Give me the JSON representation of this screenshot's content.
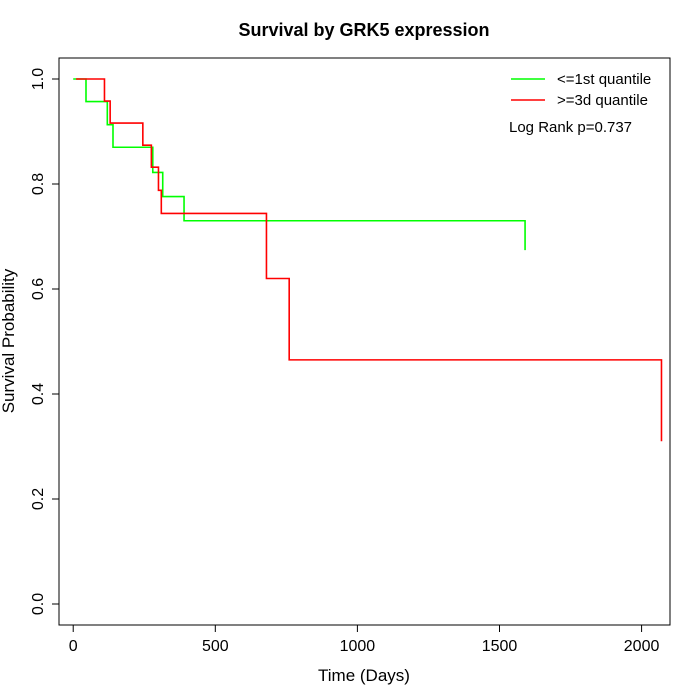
{
  "chart_data": {
    "type": "line",
    "title": "Survival by GRK5 expression",
    "xlabel": "Time (Days)",
    "ylabel": "Survival Probability",
    "xlim": [
      -50,
      2100
    ],
    "ylim": [
      -0.04,
      1.04
    ],
    "x_ticks": [
      0,
      500,
      1000,
      1500,
      2000
    ],
    "x_tick_labels": [
      "0",
      "500",
      "1000",
      "1500",
      "2000"
    ],
    "y_ticks": [
      0.0,
      0.2,
      0.4,
      0.6,
      0.8,
      1.0
    ],
    "y_tick_labels": [
      "0.0",
      "0.2",
      "0.4",
      "0.6",
      "0.8",
      "1.0"
    ],
    "grid": false,
    "legend_position": "top-right",
    "annotation": "Log Rank p=0.737",
    "series": [
      {
        "name": "<=1st quantile",
        "color": "#00ff00",
        "step": true,
        "x": [
          0,
          20,
          45,
          120,
          140,
          280,
          315,
          390,
          1590
        ],
        "y": [
          1.0,
          1.0,
          0.957,
          0.913,
          0.87,
          0.822,
          0.776,
          0.73,
          0.674
        ]
      },
      {
        "name": ">=3d quantile",
        "color": "#ff0000",
        "step": true,
        "x": [
          10,
          25,
          110,
          130,
          245,
          275,
          300,
          310,
          565,
          680,
          760,
          2070
        ],
        "y": [
          1.0,
          1.0,
          0.958,
          0.916,
          0.874,
          0.832,
          0.788,
          0.744,
          0.744,
          0.62,
          0.465,
          0.31
        ]
      }
    ]
  }
}
